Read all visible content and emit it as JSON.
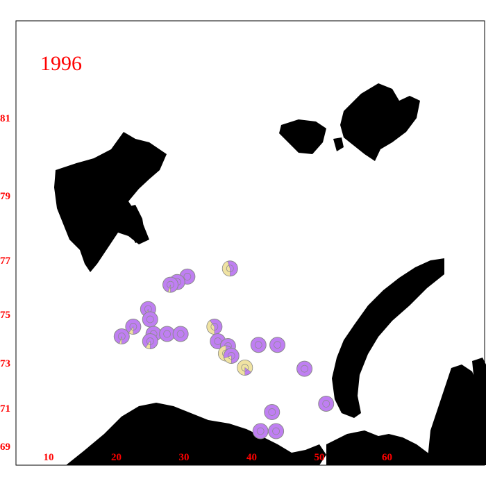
{
  "title": "1996",
  "colors": {
    "tick_labels": "#ff0000",
    "land": "#000000",
    "category_main": "#bf7ff2",
    "category_secondary": "#f0e3a2",
    "outline": "#8a8a8a"
  },
  "chart_data": {
    "type": "scatter",
    "title": "1996",
    "xlabel": "",
    "ylabel": "",
    "xlim": [
      5,
      70
    ],
    "ylim": [
      69,
      84
    ],
    "x_ticks": [
      "10",
      "20",
      "30",
      "40",
      "50",
      "60"
    ],
    "y_ticks": [
      "69",
      "71",
      "73",
      "75",
      "77",
      "79",
      "81"
    ],
    "points": [
      {
        "lon": 36.8,
        "lat": 76.7,
        "secondary_fraction": 0.45
      },
      {
        "lon": 30.5,
        "lat": 76.4,
        "secondary_fraction": 0.0
      },
      {
        "lon": 29.0,
        "lat": 76.2,
        "secondary_fraction": 0.0
      },
      {
        "lon": 28.0,
        "lat": 76.1,
        "secondary_fraction": 0.05
      },
      {
        "lon": 24.7,
        "lat": 75.2,
        "secondary_fraction": 0.05
      },
      {
        "lon": 25.0,
        "lat": 74.8,
        "secondary_fraction": 0.0
      },
      {
        "lon": 22.5,
        "lat": 74.5,
        "secondary_fraction": 0.1
      },
      {
        "lon": 20.8,
        "lat": 74.1,
        "secondary_fraction": 0.05
      },
      {
        "lon": 25.5,
        "lat": 74.2,
        "secondary_fraction": 0.0
      },
      {
        "lon": 27.5,
        "lat": 74.2,
        "secondary_fraction": 0.0
      },
      {
        "lon": 29.5,
        "lat": 74.2,
        "secondary_fraction": 0.0
      },
      {
        "lon": 25.0,
        "lat": 73.9,
        "secondary_fraction": 0.1
      },
      {
        "lon": 34.5,
        "lat": 74.5,
        "secondary_fraction": 0.4
      },
      {
        "lon": 35.0,
        "lat": 73.9,
        "secondary_fraction": 0.0
      },
      {
        "lon": 36.5,
        "lat": 73.7,
        "secondary_fraction": 0.0
      },
      {
        "lon": 36.2,
        "lat": 73.4,
        "secondary_fraction": 0.5
      },
      {
        "lon": 37.0,
        "lat": 73.3,
        "secondary_fraction": 0.2
      },
      {
        "lon": 41.0,
        "lat": 73.75,
        "secondary_fraction": 0.0
      },
      {
        "lon": 43.8,
        "lat": 73.75,
        "secondary_fraction": 0.0
      },
      {
        "lon": 39.0,
        "lat": 72.8,
        "secondary_fraction": 0.85
      },
      {
        "lon": 47.8,
        "lat": 72.75,
        "secondary_fraction": 0.0
      },
      {
        "lon": 51.0,
        "lat": 71.2,
        "secondary_fraction": 0.0
      },
      {
        "lon": 43.0,
        "lat": 70.8,
        "secondary_fraction": 0.0
      },
      {
        "lon": 41.3,
        "lat": 69.8,
        "secondary_fraction": 0.0
      },
      {
        "lon": 43.6,
        "lat": 69.8,
        "secondary_fraction": 0.0
      }
    ]
  }
}
